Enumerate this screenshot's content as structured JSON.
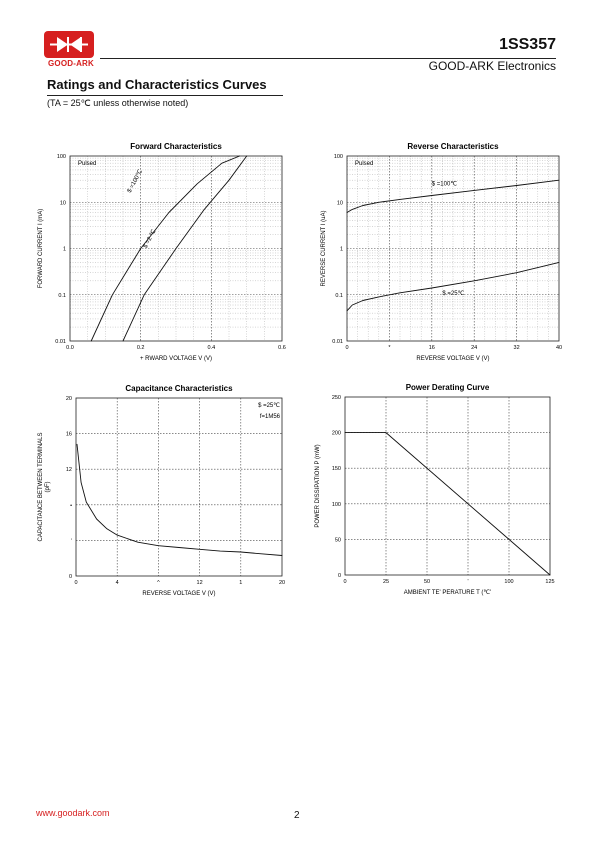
{
  "header": {
    "logo_text": "GOOD-ARK",
    "part_number": "1SS357",
    "company": "GOOD-ARK Electronics",
    "brand_color": "#d61f1f"
  },
  "section": {
    "title": "Ratings and Characteristics Curves",
    "note": "(TA = 25℃ unless otherwise noted)"
  },
  "footer": {
    "website": "www.goodark.com",
    "page": "2"
  },
  "chart_data": [
    {
      "type": "line",
      "title": "Forward    Characteristics",
      "annotation": "Pulsed",
      "xlabel": "+  RWARD VOLTAGE   V    (V)",
      "ylabel": "FORWARD CURRENT   I     (mA)",
      "xscale": "linear",
      "yscale": "log",
      "xlim": [
        0.0,
        0.6
      ],
      "ylim": [
        0.01,
        100
      ],
      "xticks": [
        "0.0",
        "0.2",
        "0.4",
        "0.6"
      ],
      "yticks": [
        "0.01",
        "0.1",
        "1",
        "10",
        "100"
      ],
      "grid": true,
      "series": [
        {
          "name": "$ =100℃",
          "x": [
            0.06,
            0.12,
            0.2,
            0.28,
            0.36,
            0.43,
            0.48
          ],
          "y": [
            0.01,
            0.1,
            1,
            6,
            25,
            70,
            100
          ]
        },
        {
          "name": "$ =2   ℃",
          "x": [
            0.15,
            0.21,
            0.3,
            0.38,
            0.45,
            0.5
          ],
          "y": [
            0.01,
            0.1,
            1,
            7,
            30,
            100
          ]
        }
      ]
    },
    {
      "type": "line",
      "title": "Reverse    Characteristics",
      "annotation": "Pulsed",
      "xlabel": "REVERSE VOLTAGE   V     (V)",
      "ylabel": "REVERSE CURRENT   I     (uA)",
      "xscale": "linear",
      "yscale": "log",
      "xlim": [
        0,
        40
      ],
      "ylim": [
        0.01,
        100
      ],
      "xticks": [
        "0",
        "*",
        "16",
        "24",
        "32",
        "40"
      ],
      "yticks": [
        "0.01",
        "0.1",
        "1",
        "10",
        "100"
      ],
      "grid": true,
      "series": [
        {
          "name": "$ =100℃",
          "x": [
            0,
            1,
            3,
            6,
            10,
            16,
            24,
            32,
            40
          ],
          "y": [
            6,
            7,
            8.5,
            10,
            11.5,
            14,
            18,
            23,
            30
          ]
        },
        {
          "name": "$  =25℃",
          "x": [
            0,
            1,
            3,
            6,
            10,
            16,
            24,
            32,
            40
          ],
          "y": [
            0.045,
            0.06,
            0.075,
            0.09,
            0.11,
            0.14,
            0.2,
            0.3,
            0.5
          ]
        }
      ]
    },
    {
      "type": "line",
      "title": "Capacitance Characteristics",
      "annotations": [
        "$ =25℃",
        "f=1M56"
      ],
      "xlabel": "REVERSE VOLTAGE   V     (V)",
      "ylabel": "CAPACITANCE BETWEEN TERMINALS",
      "ylabel2": "(pF)",
      "xscale": "linear",
      "yscale": "linear",
      "xlim": [
        0,
        20
      ],
      "ylim": [
        0,
        20
      ],
      "xticks": [
        "0",
        "4",
        "^",
        "12",
        "1",
        "20"
      ],
      "yticks": [
        "0",
        "'",
        "•",
        "12",
        "16",
        "20"
      ],
      "grid": true,
      "series": [
        {
          "name": "",
          "x": [
            0.1,
            0.5,
            1,
            2,
            3,
            4,
            6,
            8,
            10,
            12,
            14,
            16,
            18,
            20
          ],
          "y": [
            14.8,
            10.5,
            8.3,
            6.4,
            5.3,
            4.6,
            3.8,
            3.4,
            3.2,
            3.0,
            2.8,
            2.7,
            2.5,
            2.3
          ]
        }
      ]
    },
    {
      "type": "line",
      "title": "Power Derating Curve",
      "xlabel": "AMBIENT TE' PERATURE    T    (℃'",
      "ylabel": "POWER DISSIPATION   P     (mW)",
      "xscale": "linear",
      "yscale": "linear",
      "xlim": [
        0,
        125
      ],
      "ylim": [
        0,
        250
      ],
      "xticks": [
        "0",
        "25",
        "50",
        "'",
        "100",
        "125"
      ],
      "yticks": [
        "0",
        "50",
        "100",
        "150",
        "200",
        "250"
      ],
      "grid": true,
      "series": [
        {
          "name": "",
          "x": [
            0,
            25,
            125
          ],
          "y": [
            200,
            200,
            0
          ]
        }
      ]
    }
  ]
}
